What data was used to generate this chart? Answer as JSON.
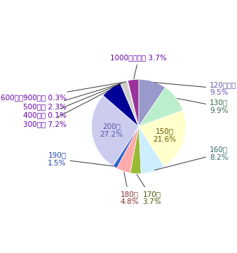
{
  "values": [
    9.5,
    9.9,
    21.6,
    8.2,
    3.7,
    4.8,
    1.5,
    27.2,
    7.2,
    0.1,
    2.3,
    0.3,
    3.7
  ],
  "colors": [
    "#9999cc",
    "#bbeecc",
    "#ffffcc",
    "#cceeff",
    "#99bb33",
    "#ffaaaa",
    "#3366cc",
    "#ccccee",
    "#000099",
    "#ffff00",
    "#cccccc",
    "#cccccc",
    "#993399"
  ],
  "label_texts": [
    "120円以下\n9.5%",
    "130円\n9.9%",
    "150円\n21.6%",
    "160円\n8.2%",
    "170円\n3.7%",
    "180円\n4.8%",
    "190円\n1.5%",
    "200円\n27.2%",
    "300円， 7.2%",
    "400円， 0.1%",
    "500円， 2.3%",
    "600円～900円， 0.3%",
    "1000円以上， 3.7%"
  ],
  "label_colors": [
    "#6655aa",
    "#336644",
    "#665500",
    "#336666",
    "#445500",
    "#883333",
    "#2244aa",
    "#5555aa",
    "#6600aa",
    "#6600aa",
    "#6600aa",
    "#6600aa",
    "#6600aa"
  ],
  "inside_labels": [
    2,
    7
  ],
  "startangle": 90,
  "fontsize": 7.5
}
